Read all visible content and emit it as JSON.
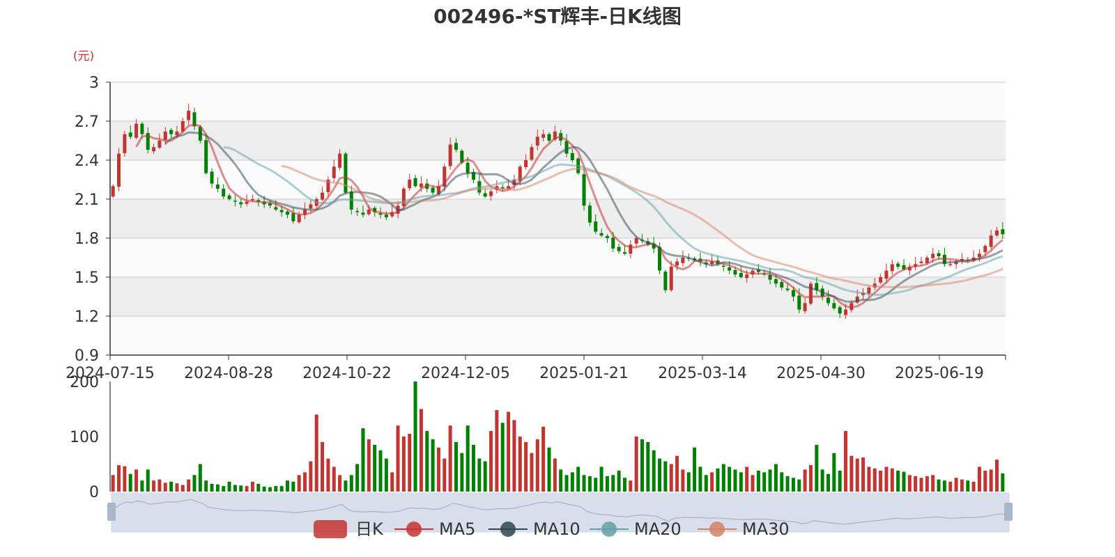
{
  "chart_data": {
    "type": "candlestick",
    "title": "002496-*ST辉丰-日K线图",
    "unit": "(元)",
    "colors": {
      "up": "#c23531",
      "down": "#008000",
      "ma5": "#c23531",
      "ma10": "#2f4554",
      "ma20": "#61a0a8",
      "ma30": "#d48265",
      "split_band": "#eeeeee",
      "split_line": "#cccccc",
      "slider_fill": "#d9dfea",
      "slider_handle": "#a7b7cc",
      "text": "#333333"
    },
    "grid": true,
    "price_axis": {
      "min": 0.9,
      "max": 3.0,
      "ticks": [
        "3",
        "2.7",
        "2.4",
        "2.1",
        "1.8",
        "1.5",
        "1.2",
        "0.9"
      ]
    },
    "volume_axis": {
      "min": 0,
      "max": 200,
      "ticks": [
        "200",
        "100",
        "0"
      ]
    },
    "x_ticks": [
      "2024-07-15",
      "2024-08-28",
      "2024-10-22",
      "2024-12-05",
      "2025-01-21",
      "2025-03-14",
      "2025-04-30",
      "2025-06-19"
    ],
    "legend": {
      "position": "bottom",
      "items": [
        {
          "name": "日K",
          "icon": "candle-legend-icon"
        },
        {
          "name": "MA5",
          "icon": "ma5-legend-icon"
        },
        {
          "name": "MA10",
          "icon": "ma10-legend-icon"
        },
        {
          "name": "MA20",
          "icon": "ma20-legend-icon"
        },
        {
          "name": "MA30",
          "icon": "ma30-legend-icon"
        }
      ]
    },
    "close_series": [
      2.2,
      2.45,
      2.6,
      2.58,
      2.68,
      2.6,
      2.48,
      2.5,
      2.55,
      2.62,
      2.6,
      2.62,
      2.7,
      2.78,
      2.66,
      2.55,
      2.3,
      2.22,
      2.18,
      2.12,
      2.1,
      2.08,
      2.06,
      2.08,
      2.1,
      2.08,
      2.06,
      2.05,
      2.02,
      2.0,
      1.98,
      1.93,
      1.98,
      2.02,
      2.06,
      2.1,
      2.15,
      2.25,
      2.35,
      2.45,
      2.15,
      2.02,
      2.0,
      1.98,
      2.02,
      2.0,
      1.98,
      1.96,
      2.0,
      2.05,
      2.18,
      2.25,
      2.2,
      2.22,
      2.18,
      2.15,
      2.2,
      2.35,
      2.52,
      2.48,
      2.38,
      2.3,
      2.25,
      2.15,
      2.12,
      2.16,
      2.2,
      2.18,
      2.2,
      2.25,
      2.35,
      2.4,
      2.5,
      2.58,
      2.6,
      2.55,
      2.62,
      2.55,
      2.45,
      2.4,
      2.3,
      2.05,
      1.92,
      1.85,
      1.82,
      1.8,
      1.72,
      1.7,
      1.68,
      1.75,
      1.8,
      1.78,
      1.75,
      1.72,
      1.55,
      1.4,
      1.58,
      1.62,
      1.65,
      1.64,
      1.63,
      1.62,
      1.6,
      1.62,
      1.6,
      1.58,
      1.55,
      1.52,
      1.5,
      1.52,
      1.55,
      1.54,
      1.52,
      1.48,
      1.45,
      1.42,
      1.4,
      1.35,
      1.25,
      1.3,
      1.45,
      1.4,
      1.35,
      1.3,
      1.26,
      1.22,
      1.25,
      1.3,
      1.35,
      1.38,
      1.42,
      1.45,
      1.5,
      1.55,
      1.6,
      1.58,
      1.56,
      1.58,
      1.6,
      1.62,
      1.65,
      1.68,
      1.66,
      1.6,
      1.6,
      1.62,
      1.64,
      1.63,
      1.65,
      1.68,
      1.74,
      1.82,
      1.86,
      1.83
    ],
    "volume_series": [
      30,
      48,
      46,
      32,
      40,
      20,
      40,
      20,
      22,
      16,
      18,
      15,
      12,
      22,
      30,
      50,
      20,
      14,
      13,
      10,
      18,
      12,
      11,
      10,
      18,
      14,
      9,
      8,
      10,
      10,
      20,
      18,
      30,
      35,
      55,
      140,
      90,
      60,
      45,
      30,
      20,
      30,
      50,
      115,
      95,
      85,
      75,
      60,
      35,
      120,
      100,
      105,
      210,
      150,
      110,
      95,
      80,
      60,
      120,
      90,
      70,
      120,
      85,
      60,
      55,
      110,
      148,
      125,
      145,
      130,
      100,
      90,
      70,
      95,
      118,
      80,
      60,
      40,
      30,
      35,
      45,
      30,
      28,
      25,
      45,
      28,
      30,
      38,
      25,
      20,
      100,
      95,
      90,
      75,
      60,
      55,
      50,
      65,
      40,
      35,
      80,
      45,
      30,
      35,
      42,
      50,
      45,
      40,
      35,
      45,
      30,
      38,
      35,
      40,
      50,
      35,
      28,
      25,
      22,
      40,
      48,
      85,
      40,
      32,
      70,
      38,
      110,
      65,
      60,
      62,
      45,
      42,
      38,
      45,
      42,
      38,
      36,
      30,
      28,
      25,
      28,
      30,
      22,
      20,
      18,
      25,
      22,
      20,
      18,
      45,
      38,
      40,
      58,
      33
    ]
  },
  "icons": {
    "left_handle": "slider-left-handle-icon",
    "right_handle": "slider-right-handle-icon"
  }
}
